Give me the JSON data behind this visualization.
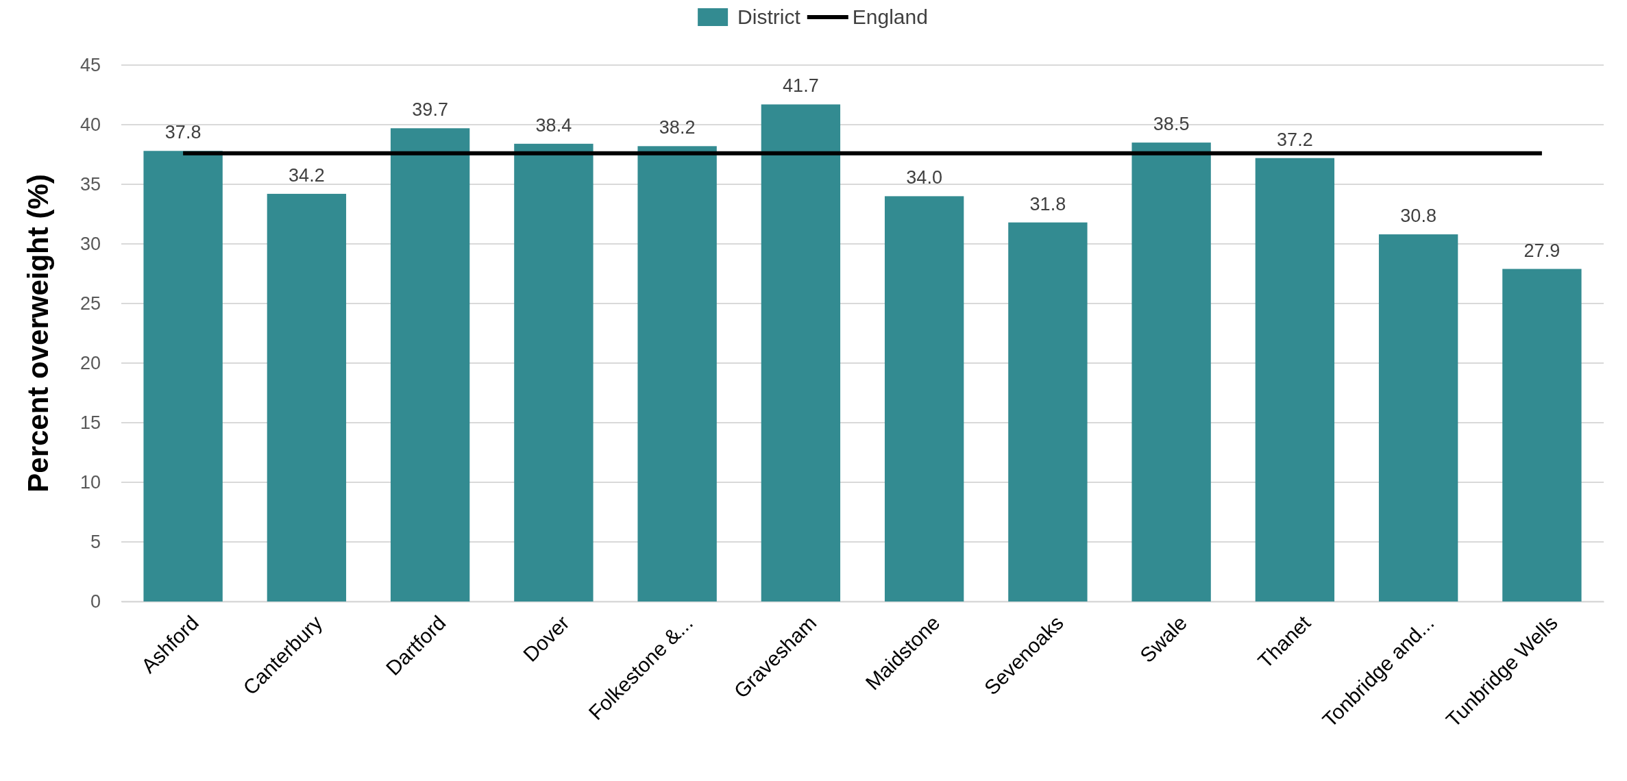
{
  "chart_data": {
    "type": "bar",
    "ylabel": "Percent overweight (%)",
    "categories": [
      "Ashford",
      "Canterbury",
      "Dartford",
      "Dover",
      "Folkestone &...",
      "Gravesham",
      "Maidstone",
      "Sevenoaks",
      "Swale",
      "Thanet",
      "Tonbridge and...",
      "Tunbridge Wells"
    ],
    "series": [
      {
        "name": "District",
        "color": "#338b91",
        "values": [
          37.8,
          34.2,
          39.7,
          38.4,
          38.2,
          41.7,
          34.0,
          31.8,
          38.5,
          37.2,
          30.8,
          27.9
        ],
        "value_labels": [
          "37.8",
          "34.2",
          "39.7",
          "38.4",
          "38.2",
          "41.7",
          "34.0",
          "31.8",
          "38.5",
          "37.2",
          "30.8",
          "27.9"
        ]
      },
      {
        "name": "England",
        "type": "line",
        "color": "#000000",
        "values": [
          37.6,
          37.6,
          37.6,
          37.6,
          37.6,
          37.6,
          37.6,
          37.6,
          37.6,
          37.6,
          37.6,
          37.6
        ]
      }
    ],
    "ylim": [
      0,
      45
    ],
    "yticks": [
      0,
      5,
      10,
      15,
      20,
      25,
      30,
      35,
      40,
      45
    ],
    "grid": "y",
    "legend": "top"
  }
}
